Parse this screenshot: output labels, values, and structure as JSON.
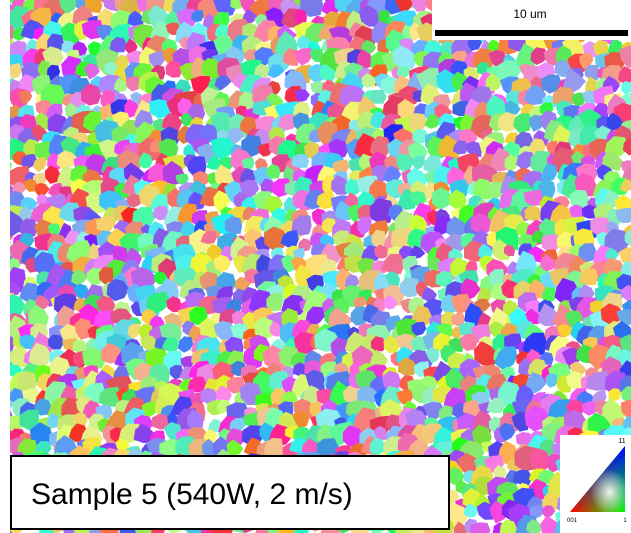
{
  "scale_bar": {
    "label": "10 um"
  },
  "caption": "Sample 5 (540W, 2 m/s)",
  "ipf_legend": {
    "top": "11",
    "bottom_left": "001",
    "bottom_right": "1"
  }
}
